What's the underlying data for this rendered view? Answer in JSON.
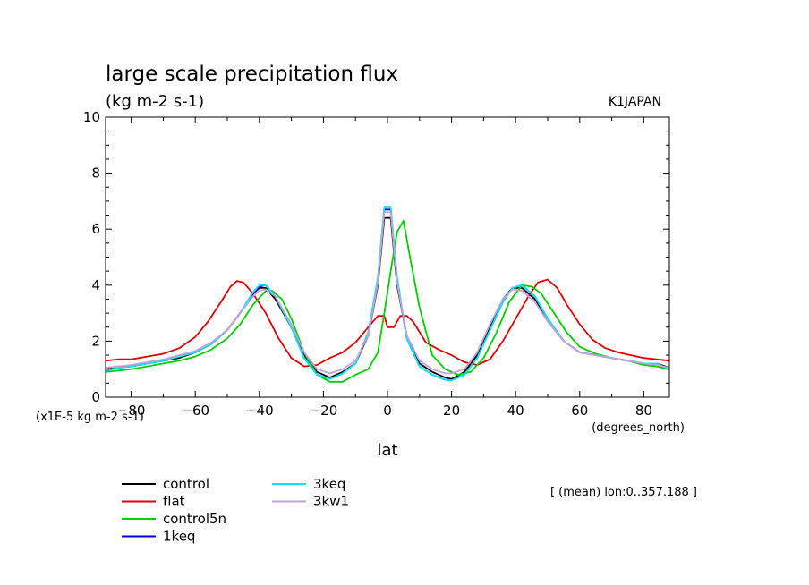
{
  "header": {
    "title": "large scale precipitation flux",
    "units": "(kg m-2 s-1)",
    "model": "K1JAPAN"
  },
  "axes": {
    "scale_note": "(x1E-5 kg m-2 s-1)",
    "x_units": "(degrees_north)",
    "xlabel": "lat"
  },
  "footer": {
    "mean_note": "[ (mean) lon:0..357.188 ]"
  },
  "chart_data": {
    "type": "line",
    "title": "large scale precipitation flux",
    "ylabel_units": "(kg m-2 s-1)",
    "xlabel": "lat",
    "xlim": [
      -88,
      88
    ],
    "ylim": [
      0,
      10
    ],
    "x_ticks": [
      -80,
      -60,
      -40,
      -20,
      0,
      20,
      40,
      60,
      80
    ],
    "y_ticks": [
      0,
      2,
      4,
      6,
      8,
      10
    ],
    "grid": false,
    "legend_placement": "bottom-left",
    "series": [
      {
        "name": "control",
        "color": "#000000",
        "points": [
          [
            -88,
            1.0
          ],
          [
            -84,
            1.1
          ],
          [
            -80,
            1.1
          ],
          [
            -75,
            1.2
          ],
          [
            -70,
            1.3
          ],
          [
            -65,
            1.4
          ],
          [
            -60,
            1.6
          ],
          [
            -55,
            1.9
          ],
          [
            -50,
            2.4
          ],
          [
            -46,
            3.0
          ],
          [
            -42,
            3.7
          ],
          [
            -40,
            3.9
          ],
          [
            -38,
            3.9
          ],
          [
            -35,
            3.5
          ],
          [
            -30,
            2.5
          ],
          [
            -26,
            1.5
          ],
          [
            -22,
            0.9
          ],
          [
            -18,
            0.7
          ],
          [
            -14,
            0.9
          ],
          [
            -10,
            1.2
          ],
          [
            -6,
            2.2
          ],
          [
            -3,
            4.0
          ],
          [
            -1,
            6.4
          ],
          [
            1,
            6.4
          ],
          [
            3,
            4.0
          ],
          [
            6,
            2.2
          ],
          [
            10,
            1.2
          ],
          [
            14,
            0.9
          ],
          [
            18,
            0.7
          ],
          [
            20,
            0.65
          ],
          [
            24,
            0.9
          ],
          [
            28,
            1.5
          ],
          [
            32,
            2.5
          ],
          [
            36,
            3.5
          ],
          [
            39,
            3.9
          ],
          [
            42,
            3.9
          ],
          [
            46,
            3.5
          ],
          [
            50,
            2.8
          ],
          [
            55,
            2.0
          ],
          [
            60,
            1.6
          ],
          [
            65,
            1.5
          ],
          [
            70,
            1.4
          ],
          [
            75,
            1.3
          ],
          [
            80,
            1.2
          ],
          [
            84,
            1.2
          ],
          [
            88,
            1.05
          ]
        ]
      },
      {
        "name": "flat",
        "color": "#e00000",
        "points": [
          [
            -88,
            1.3
          ],
          [
            -84,
            1.35
          ],
          [
            -80,
            1.35
          ],
          [
            -75,
            1.45
          ],
          [
            -70,
            1.55
          ],
          [
            -65,
            1.75
          ],
          [
            -60,
            2.15
          ],
          [
            -56,
            2.7
          ],
          [
            -52,
            3.4
          ],
          [
            -49,
            3.95
          ],
          [
            -47,
            4.15
          ],
          [
            -45,
            4.1
          ],
          [
            -42,
            3.7
          ],
          [
            -38,
            3.0
          ],
          [
            -34,
            2.1
          ],
          [
            -30,
            1.4
          ],
          [
            -26,
            1.1
          ],
          [
            -22,
            1.15
          ],
          [
            -18,
            1.4
          ],
          [
            -14,
            1.6
          ],
          [
            -10,
            1.95
          ],
          [
            -6,
            2.5
          ],
          [
            -3,
            2.9
          ],
          [
            -1,
            2.9
          ],
          [
            0,
            2.5
          ],
          [
            2,
            2.5
          ],
          [
            4,
            2.9
          ],
          [
            6,
            2.9
          ],
          [
            8,
            2.7
          ],
          [
            12,
            1.95
          ],
          [
            16,
            1.7
          ],
          [
            20,
            1.5
          ],
          [
            24,
            1.25
          ],
          [
            28,
            1.15
          ],
          [
            32,
            1.35
          ],
          [
            36,
            2.0
          ],
          [
            40,
            2.8
          ],
          [
            44,
            3.6
          ],
          [
            47,
            4.1
          ],
          [
            50,
            4.2
          ],
          [
            53,
            3.9
          ],
          [
            56,
            3.3
          ],
          [
            60,
            2.6
          ],
          [
            64,
            2.05
          ],
          [
            68,
            1.75
          ],
          [
            72,
            1.6
          ],
          [
            76,
            1.5
          ],
          [
            80,
            1.4
          ],
          [
            84,
            1.35
          ],
          [
            88,
            1.3
          ]
        ]
      },
      {
        "name": "control5n",
        "color": "#00d000",
        "points": [
          [
            -88,
            0.9
          ],
          [
            -84,
            0.95
          ],
          [
            -80,
            1.0
          ],
          [
            -75,
            1.1
          ],
          [
            -70,
            1.2
          ],
          [
            -65,
            1.3
          ],
          [
            -60,
            1.45
          ],
          [
            -55,
            1.7
          ],
          [
            -50,
            2.1
          ],
          [
            -46,
            2.6
          ],
          [
            -42,
            3.3
          ],
          [
            -38,
            3.8
          ],
          [
            -36,
            3.8
          ],
          [
            -33,
            3.5
          ],
          [
            -30,
            2.8
          ],
          [
            -26,
            1.6
          ],
          [
            -22,
            0.8
          ],
          [
            -18,
            0.55
          ],
          [
            -14,
            0.55
          ],
          [
            -10,
            0.8
          ],
          [
            -6,
            1.0
          ],
          [
            -3,
            1.6
          ],
          [
            -1,
            3.0
          ],
          [
            1,
            4.5
          ],
          [
            3,
            5.9
          ],
          [
            5,
            6.3
          ],
          [
            7,
            5.0
          ],
          [
            10,
            3.2
          ],
          [
            14,
            1.5
          ],
          [
            18,
            1.0
          ],
          [
            22,
            0.8
          ],
          [
            26,
            0.9
          ],
          [
            30,
            1.4
          ],
          [
            34,
            2.3
          ],
          [
            38,
            3.4
          ],
          [
            42,
            4.0
          ],
          [
            45,
            3.95
          ],
          [
            48,
            3.7
          ],
          [
            52,
            3.0
          ],
          [
            56,
            2.3
          ],
          [
            60,
            1.8
          ],
          [
            65,
            1.55
          ],
          [
            70,
            1.4
          ],
          [
            75,
            1.3
          ],
          [
            80,
            1.15
          ],
          [
            84,
            1.1
          ],
          [
            88,
            1.0
          ]
        ]
      },
      {
        "name": "1keq",
        "color": "#0000e0",
        "points": [
          [
            -88,
            0.95
          ],
          [
            -84,
            1.05
          ],
          [
            -80,
            1.1
          ],
          [
            -75,
            1.2
          ],
          [
            -70,
            1.3
          ],
          [
            -65,
            1.45
          ],
          [
            -60,
            1.6
          ],
          [
            -55,
            1.9
          ],
          [
            -50,
            2.4
          ],
          [
            -46,
            3.0
          ],
          [
            -42,
            3.7
          ],
          [
            -40,
            3.95
          ],
          [
            -38,
            4.0
          ],
          [
            -35,
            3.6
          ],
          [
            -30,
            2.5
          ],
          [
            -26,
            1.4
          ],
          [
            -22,
            0.8
          ],
          [
            -18,
            0.65
          ],
          [
            -14,
            0.85
          ],
          [
            -10,
            1.2
          ],
          [
            -6,
            2.3
          ],
          [
            -3,
            4.2
          ],
          [
            -1,
            6.7
          ],
          [
            1,
            6.7
          ],
          [
            3,
            4.2
          ],
          [
            6,
            2.1
          ],
          [
            10,
            1.1
          ],
          [
            14,
            0.8
          ],
          [
            18,
            0.62
          ],
          [
            20,
            0.6
          ],
          [
            24,
            0.8
          ],
          [
            28,
            1.4
          ],
          [
            32,
            2.4
          ],
          [
            36,
            3.4
          ],
          [
            39,
            3.9
          ],
          [
            42,
            4.0
          ],
          [
            46,
            3.6
          ],
          [
            50,
            2.8
          ],
          [
            55,
            2.0
          ],
          [
            60,
            1.6
          ],
          [
            65,
            1.5
          ],
          [
            70,
            1.4
          ],
          [
            75,
            1.3
          ],
          [
            80,
            1.2
          ],
          [
            84,
            1.2
          ],
          [
            88,
            1.0
          ]
        ]
      },
      {
        "name": "3keq",
        "color": "#00e8f0",
        "points": [
          [
            -88,
            0.95
          ],
          [
            -84,
            1.05
          ],
          [
            -80,
            1.1
          ],
          [
            -75,
            1.2
          ],
          [
            -70,
            1.3
          ],
          [
            -65,
            1.45
          ],
          [
            -60,
            1.6
          ],
          [
            -55,
            1.9
          ],
          [
            -50,
            2.4
          ],
          [
            -46,
            3.0
          ],
          [
            -42,
            3.75
          ],
          [
            -40,
            4.0
          ],
          [
            -38,
            4.0
          ],
          [
            -35,
            3.6
          ],
          [
            -30,
            2.5
          ],
          [
            -26,
            1.4
          ],
          [
            -22,
            0.8
          ],
          [
            -18,
            0.65
          ],
          [
            -14,
            0.85
          ],
          [
            -10,
            1.2
          ],
          [
            -6,
            2.3
          ],
          [
            -3,
            4.3
          ],
          [
            -1,
            6.8
          ],
          [
            1,
            6.8
          ],
          [
            3,
            4.3
          ],
          [
            6,
            2.1
          ],
          [
            10,
            1.1
          ],
          [
            14,
            0.8
          ],
          [
            18,
            0.62
          ],
          [
            20,
            0.6
          ],
          [
            24,
            0.8
          ],
          [
            28,
            1.4
          ],
          [
            32,
            2.4
          ],
          [
            36,
            3.4
          ],
          [
            39,
            3.9
          ],
          [
            42,
            4.0
          ],
          [
            46,
            3.6
          ],
          [
            50,
            2.8
          ],
          [
            55,
            2.0
          ],
          [
            60,
            1.6
          ],
          [
            65,
            1.5
          ],
          [
            70,
            1.4
          ],
          [
            75,
            1.3
          ],
          [
            80,
            1.2
          ],
          [
            84,
            1.2
          ],
          [
            88,
            1.0
          ]
        ]
      },
      {
        "name": "3kw1",
        "color": "#c8a0d8",
        "points": [
          [
            -88,
            1.05
          ],
          [
            -84,
            1.1
          ],
          [
            -80,
            1.15
          ],
          [
            -75,
            1.25
          ],
          [
            -70,
            1.35
          ],
          [
            -65,
            1.5
          ],
          [
            -60,
            1.65
          ],
          [
            -55,
            1.95
          ],
          [
            -50,
            2.4
          ],
          [
            -46,
            3.0
          ],
          [
            -42,
            3.6
          ],
          [
            -40,
            3.8
          ],
          [
            -38,
            3.85
          ],
          [
            -35,
            3.6
          ],
          [
            -30,
            2.6
          ],
          [
            -26,
            1.6
          ],
          [
            -22,
            1.0
          ],
          [
            -18,
            0.85
          ],
          [
            -14,
            1.0
          ],
          [
            -10,
            1.3
          ],
          [
            -6,
            2.2
          ],
          [
            -3,
            4.1
          ],
          [
            -1,
            6.6
          ],
          [
            1,
            6.6
          ],
          [
            3,
            4.1
          ],
          [
            6,
            2.2
          ],
          [
            10,
            1.3
          ],
          [
            14,
            1.0
          ],
          [
            18,
            0.85
          ],
          [
            20,
            0.85
          ],
          [
            24,
            1.0
          ],
          [
            28,
            1.6
          ],
          [
            32,
            2.6
          ],
          [
            36,
            3.5
          ],
          [
            39,
            3.85
          ],
          [
            42,
            3.8
          ],
          [
            46,
            3.4
          ],
          [
            50,
            2.7
          ],
          [
            55,
            2.0
          ],
          [
            60,
            1.6
          ],
          [
            65,
            1.5
          ],
          [
            70,
            1.4
          ],
          [
            75,
            1.3
          ],
          [
            80,
            1.2
          ],
          [
            84,
            1.15
          ],
          [
            88,
            1.05
          ]
        ]
      }
    ]
  }
}
